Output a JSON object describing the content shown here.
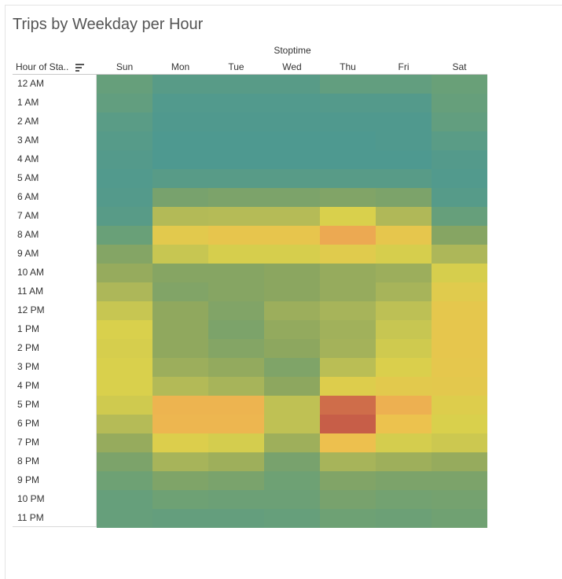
{
  "title": "Trips by Weekday per Hour",
  "header": {
    "column_group_label": "Stoptime",
    "row_header_label": "Hour of Sta.."
  },
  "icons": {
    "sort": "sort-descending-icon"
  },
  "chart_data": {
    "type": "heatmap",
    "title": "Trips by Weekday per Hour",
    "x_group_label": "Stoptime",
    "y_header": "Hour of Sta..",
    "columns": [
      "Sun",
      "Mon",
      "Tue",
      "Wed",
      "Thu",
      "Fri",
      "Sat"
    ],
    "rows": [
      "12 AM",
      "1 AM",
      "2 AM",
      "3 AM",
      "4 AM",
      "5 AM",
      "6 AM",
      "7 AM",
      "8 AM",
      "9 AM",
      "10 AM",
      "11 AM",
      "12 PM",
      "1 PM",
      "2 PM",
      "3 PM",
      "4 PM",
      "5 PM",
      "6 PM",
      "7 PM",
      "8 PM",
      "9 PM",
      "10 PM",
      "11 PM"
    ],
    "value_scale": "relative intensity 0 (low, teal) to 1 (high, red)",
    "color_scale": [
      "#4e9990",
      "#6aa077",
      "#8ca65f",
      "#b5bb57",
      "#d9d04c",
      "#eec04e",
      "#eca653",
      "#c75e48"
    ],
    "values": [
      [
        0.12,
        0.05,
        0.05,
        0.05,
        0.1,
        0.1,
        0.14
      ],
      [
        0.1,
        0.02,
        0.02,
        0.02,
        0.03,
        0.03,
        0.12
      ],
      [
        0.06,
        0.01,
        0.01,
        0.01,
        0.01,
        0.01,
        0.1
      ],
      [
        0.04,
        0.0,
        0.0,
        0.0,
        0.0,
        0.01,
        0.06
      ],
      [
        0.03,
        0.0,
        0.0,
        0.0,
        0.0,
        0.0,
        0.03
      ],
      [
        0.02,
        0.05,
        0.05,
        0.05,
        0.05,
        0.05,
        0.02
      ],
      [
        0.03,
        0.2,
        0.22,
        0.22,
        0.24,
        0.22,
        0.04
      ],
      [
        0.05,
        0.42,
        0.43,
        0.43,
        0.57,
        0.41,
        0.12
      ],
      [
        0.14,
        0.63,
        0.67,
        0.67,
        0.84,
        0.66,
        0.26
      ],
      [
        0.25,
        0.5,
        0.56,
        0.56,
        0.62,
        0.56,
        0.4
      ],
      [
        0.32,
        0.26,
        0.26,
        0.28,
        0.32,
        0.34,
        0.56
      ],
      [
        0.4,
        0.24,
        0.26,
        0.28,
        0.32,
        0.38,
        0.62
      ],
      [
        0.5,
        0.3,
        0.24,
        0.34,
        0.38,
        0.46,
        0.65
      ],
      [
        0.57,
        0.3,
        0.22,
        0.31,
        0.36,
        0.5,
        0.66
      ],
      [
        0.56,
        0.3,
        0.25,
        0.29,
        0.37,
        0.53,
        0.66
      ],
      [
        0.57,
        0.34,
        0.31,
        0.23,
        0.45,
        0.58,
        0.65
      ],
      [
        0.57,
        0.42,
        0.38,
        0.29,
        0.6,
        0.63,
        0.64
      ],
      [
        0.53,
        0.78,
        0.78,
        0.47,
        0.97,
        0.8,
        0.6
      ],
      [
        0.43,
        0.77,
        0.77,
        0.47,
        1.0,
        0.7,
        0.57
      ],
      [
        0.32,
        0.59,
        0.55,
        0.35,
        0.71,
        0.55,
        0.52
      ],
      [
        0.22,
        0.38,
        0.35,
        0.2,
        0.38,
        0.35,
        0.32
      ],
      [
        0.16,
        0.23,
        0.21,
        0.16,
        0.24,
        0.22,
        0.22
      ],
      [
        0.12,
        0.16,
        0.15,
        0.15,
        0.2,
        0.18,
        0.19
      ],
      [
        0.12,
        0.11,
        0.11,
        0.12,
        0.16,
        0.15,
        0.17
      ]
    ]
  }
}
